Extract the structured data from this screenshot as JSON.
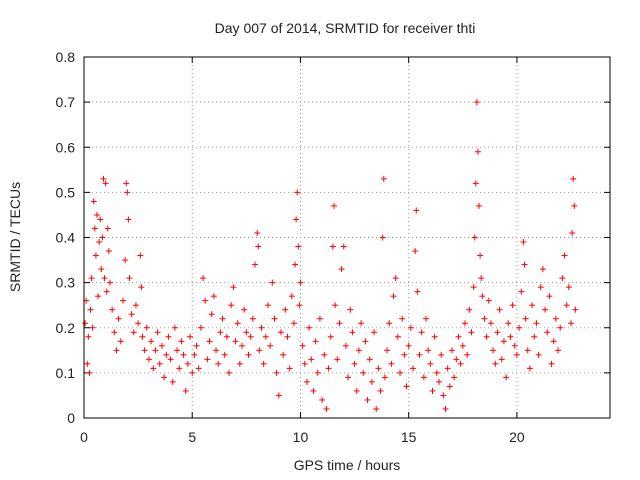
{
  "chart_data": {
    "type": "scatter",
    "title": "Day 007 of 2014, SRMTID for receiver thti",
    "xlabel": "GPS time / hours",
    "ylabel": "SRMTID / TECUs",
    "xlim": [
      0,
      24.3
    ],
    "ylim": [
      0,
      0.8
    ],
    "xticks": [
      0,
      5,
      10,
      15,
      20
    ],
    "yticks": [
      0,
      0.1,
      0.2,
      0.3,
      0.4,
      0.5,
      0.6,
      0.7,
      0.8
    ],
    "grid": true,
    "marker": "+",
    "marker_color": "#ff0000",
    "series": [
      {
        "name": "SRMTID",
        "points": [
          [
            0.05,
            0.21
          ],
          [
            0.1,
            0.26
          ],
          [
            0.15,
            0.12
          ],
          [
            0.2,
            0.18
          ],
          [
            0.25,
            0.1
          ],
          [
            0.3,
            0.24
          ],
          [
            0.35,
            0.31
          ],
          [
            0.4,
            0.2
          ],
          [
            0.45,
            0.48
          ],
          [
            0.5,
            0.42
          ],
          [
            0.55,
            0.36
          ],
          [
            0.6,
            0.45
          ],
          [
            0.65,
            0.27
          ],
          [
            0.7,
            0.39
          ],
          [
            0.75,
            0.44
          ],
          [
            0.8,
            0.33
          ],
          [
            0.85,
            0.4
          ],
          [
            0.9,
            0.53
          ],
          [
            0.95,
            0.31
          ],
          [
            1.0,
            0.52
          ],
          [
            1.05,
            0.28
          ],
          [
            1.1,
            0.42
          ],
          [
            1.15,
            0.37
          ],
          [
            1.2,
            0.3
          ],
          [
            1.3,
            0.24
          ],
          [
            1.4,
            0.19
          ],
          [
            1.5,
            0.15
          ],
          [
            1.6,
            0.22
          ],
          [
            1.7,
            0.17
          ],
          [
            1.8,
            0.26
          ],
          [
            1.9,
            0.35
          ],
          [
            1.95,
            0.52
          ],
          [
            2.0,
            0.5
          ],
          [
            2.05,
            0.44
          ],
          [
            2.1,
            0.31
          ],
          [
            2.2,
            0.23
          ],
          [
            2.3,
            0.19
          ],
          [
            2.4,
            0.25
          ],
          [
            2.5,
            0.21
          ],
          [
            2.6,
            0.36
          ],
          [
            2.65,
            0.29
          ],
          [
            2.7,
            0.18
          ],
          [
            2.8,
            0.15
          ],
          [
            2.9,
            0.2
          ],
          [
            3.0,
            0.13
          ],
          [
            3.1,
            0.17
          ],
          [
            3.2,
            0.11
          ],
          [
            3.3,
            0.15
          ],
          [
            3.4,
            0.19
          ],
          [
            3.5,
            0.12
          ],
          [
            3.6,
            0.16
          ],
          [
            3.7,
            0.09
          ],
          [
            3.8,
            0.14
          ],
          [
            3.9,
            0.18
          ],
          [
            4.0,
            0.13
          ],
          [
            4.1,
            0.08
          ],
          [
            4.2,
            0.2
          ],
          [
            4.3,
            0.15
          ],
          [
            4.4,
            0.11
          ],
          [
            4.5,
            0.17
          ],
          [
            4.6,
            0.14
          ],
          [
            4.7,
            0.06
          ],
          [
            4.8,
            0.12
          ],
          [
            4.9,
            0.18
          ],
          [
            5.0,
            0.1
          ],
          [
            5.1,
            0.14
          ],
          [
            5.2,
            0.16
          ],
          [
            5.3,
            0.11
          ],
          [
            5.4,
            0.2
          ],
          [
            5.5,
            0.31
          ],
          [
            5.6,
            0.26
          ],
          [
            5.7,
            0.13
          ],
          [
            5.8,
            0.17
          ],
          [
            5.9,
            0.23
          ],
          [
            6.0,
            0.27
          ],
          [
            6.1,
            0.15
          ],
          [
            6.2,
            0.12
          ],
          [
            6.3,
            0.19
          ],
          [
            6.4,
            0.22
          ],
          [
            6.5,
            0.14
          ],
          [
            6.6,
            0.18
          ],
          [
            6.7,
            0.1
          ],
          [
            6.8,
            0.25
          ],
          [
            6.9,
            0.29
          ],
          [
            7.0,
            0.17
          ],
          [
            7.1,
            0.21
          ],
          [
            7.2,
            0.12
          ],
          [
            7.3,
            0.16
          ],
          [
            7.4,
            0.24
          ],
          [
            7.5,
            0.19
          ],
          [
            7.6,
            0.14
          ],
          [
            7.7,
            0.18
          ],
          [
            7.8,
            0.22
          ],
          [
            7.9,
            0.34
          ],
          [
            8.0,
            0.41
          ],
          [
            8.05,
            0.38
          ],
          [
            8.1,
            0.15
          ],
          [
            8.2,
            0.2
          ],
          [
            8.3,
            0.12
          ],
          [
            8.4,
            0.18
          ],
          [
            8.5,
            0.25
          ],
          [
            8.6,
            0.16
          ],
          [
            8.7,
            0.3
          ],
          [
            8.8,
            0.22
          ],
          [
            8.9,
            0.1
          ],
          [
            9.0,
            0.05
          ],
          [
            9.1,
            0.19
          ],
          [
            9.2,
            0.14
          ],
          [
            9.3,
            0.24
          ],
          [
            9.4,
            0.18
          ],
          [
            9.5,
            0.11
          ],
          [
            9.6,
            0.27
          ],
          [
            9.7,
            0.21
          ],
          [
            9.75,
            0.34
          ],
          [
            9.8,
            0.44
          ],
          [
            9.85,
            0.5
          ],
          [
            9.9,
            0.38
          ],
          [
            9.95,
            0.25
          ],
          [
            10.0,
            0.3
          ],
          [
            10.1,
            0.16
          ],
          [
            10.2,
            0.12
          ],
          [
            10.3,
            0.08
          ],
          [
            10.4,
            0.2
          ],
          [
            10.5,
            0.13
          ],
          [
            10.6,
            0.06
          ],
          [
            10.7,
            0.17
          ],
          [
            10.8,
            0.1
          ],
          [
            10.9,
            0.22
          ],
          [
            11.0,
            0.04
          ],
          [
            11.1,
            0.14
          ],
          [
            11.2,
            0.02
          ],
          [
            11.3,
            0.11
          ],
          [
            11.4,
            0.18
          ],
          [
            11.5,
            0.38
          ],
          [
            11.55,
            0.47
          ],
          [
            11.6,
            0.25
          ],
          [
            11.7,
            0.13
          ],
          [
            11.8,
            0.21
          ],
          [
            11.9,
            0.33
          ],
          [
            12.0,
            0.38
          ],
          [
            12.1,
            0.16
          ],
          [
            12.2,
            0.09
          ],
          [
            12.3,
            0.24
          ],
          [
            12.4,
            0.19
          ],
          [
            12.5,
            0.12
          ],
          [
            12.6,
            0.06
          ],
          [
            12.7,
            0.15
          ],
          [
            12.8,
            0.21
          ],
          [
            12.9,
            0.1
          ],
          [
            13.0,
            0.17
          ],
          [
            13.1,
            0.04
          ],
          [
            13.2,
            0.13
          ],
          [
            13.3,
            0.08
          ],
          [
            13.4,
            0.19
          ],
          [
            13.5,
            0.02
          ],
          [
            13.6,
            0.11
          ],
          [
            13.7,
            0.06
          ],
          [
            13.8,
            0.4
          ],
          [
            13.85,
            0.53
          ],
          [
            13.9,
            0.09
          ],
          [
            14.0,
            0.15
          ],
          [
            14.1,
            0.21
          ],
          [
            14.2,
            0.12
          ],
          [
            14.3,
            0.27
          ],
          [
            14.4,
            0.31
          ],
          [
            14.5,
            0.18
          ],
          [
            14.6,
            0.1
          ],
          [
            14.7,
            0.22
          ],
          [
            14.8,
            0.14
          ],
          [
            14.9,
            0.07
          ],
          [
            15.0,
            0.16
          ],
          [
            15.1,
            0.2
          ],
          [
            15.2,
            0.11
          ],
          [
            15.3,
            0.37
          ],
          [
            15.35,
            0.46
          ],
          [
            15.4,
            0.28
          ],
          [
            15.5,
            0.14
          ],
          [
            15.6,
            0.19
          ],
          [
            15.7,
            0.09
          ],
          [
            15.8,
            0.22
          ],
          [
            15.9,
            0.15
          ],
          [
            16.0,
            0.12
          ],
          [
            16.1,
            0.06
          ],
          [
            16.2,
            0.18
          ],
          [
            16.3,
            0.1
          ],
          [
            16.4,
            0.08
          ],
          [
            16.5,
            0.14
          ],
          [
            16.6,
            0.05
          ],
          [
            16.7,
            0.02
          ],
          [
            16.8,
            0.11
          ],
          [
            16.9,
            0.07
          ],
          [
            17.0,
            0.15
          ],
          [
            17.1,
            0.09
          ],
          [
            17.2,
            0.13
          ],
          [
            17.3,
            0.18
          ],
          [
            17.4,
            0.12
          ],
          [
            17.5,
            0.16
          ],
          [
            17.6,
            0.21
          ],
          [
            17.7,
            0.14
          ],
          [
            17.8,
            0.24
          ],
          [
            17.9,
            0.19
          ],
          [
            18.0,
            0.29
          ],
          [
            18.05,
            0.4
          ],
          [
            18.1,
            0.52
          ],
          [
            18.15,
            0.7
          ],
          [
            18.2,
            0.59
          ],
          [
            18.25,
            0.47
          ],
          [
            18.3,
            0.36
          ],
          [
            18.35,
            0.31
          ],
          [
            18.4,
            0.27
          ],
          [
            18.5,
            0.22
          ],
          [
            18.6,
            0.18
          ],
          [
            18.7,
            0.26
          ],
          [
            18.8,
            0.21
          ],
          [
            18.9,
            0.15
          ],
          [
            19.0,
            0.12
          ],
          [
            19.1,
            0.19
          ],
          [
            19.2,
            0.24
          ],
          [
            19.3,
            0.13
          ],
          [
            19.4,
            0.17
          ],
          [
            19.5,
            0.09
          ],
          [
            19.6,
            0.21
          ],
          [
            19.7,
            0.18
          ],
          [
            19.8,
            0.25
          ],
          [
            19.9,
            0.16
          ],
          [
            20.0,
            0.14
          ],
          [
            20.1,
            0.2
          ],
          [
            20.2,
            0.28
          ],
          [
            20.3,
            0.39
          ],
          [
            20.35,
            0.34
          ],
          [
            20.4,
            0.22
          ],
          [
            20.5,
            0.15
          ],
          [
            20.6,
            0.11
          ],
          [
            20.7,
            0.25
          ],
          [
            20.8,
            0.18
          ],
          [
            20.9,
            0.21
          ],
          [
            21.0,
            0.14
          ],
          [
            21.1,
            0.29
          ],
          [
            21.2,
            0.33
          ],
          [
            21.3,
            0.24
          ],
          [
            21.4,
            0.19
          ],
          [
            21.5,
            0.27
          ],
          [
            21.6,
            0.12
          ],
          [
            21.7,
            0.17
          ],
          [
            21.8,
            0.22
          ],
          [
            21.9,
            0.15
          ],
          [
            22.0,
            0.2
          ],
          [
            22.1,
            0.31
          ],
          [
            22.2,
            0.36
          ],
          [
            22.3,
            0.25
          ],
          [
            22.4,
            0.29
          ],
          [
            22.5,
            0.21
          ],
          [
            22.55,
            0.41
          ],
          [
            22.6,
            0.53
          ],
          [
            22.65,
            0.47
          ],
          [
            22.7,
            0.24
          ]
        ]
      }
    ]
  }
}
